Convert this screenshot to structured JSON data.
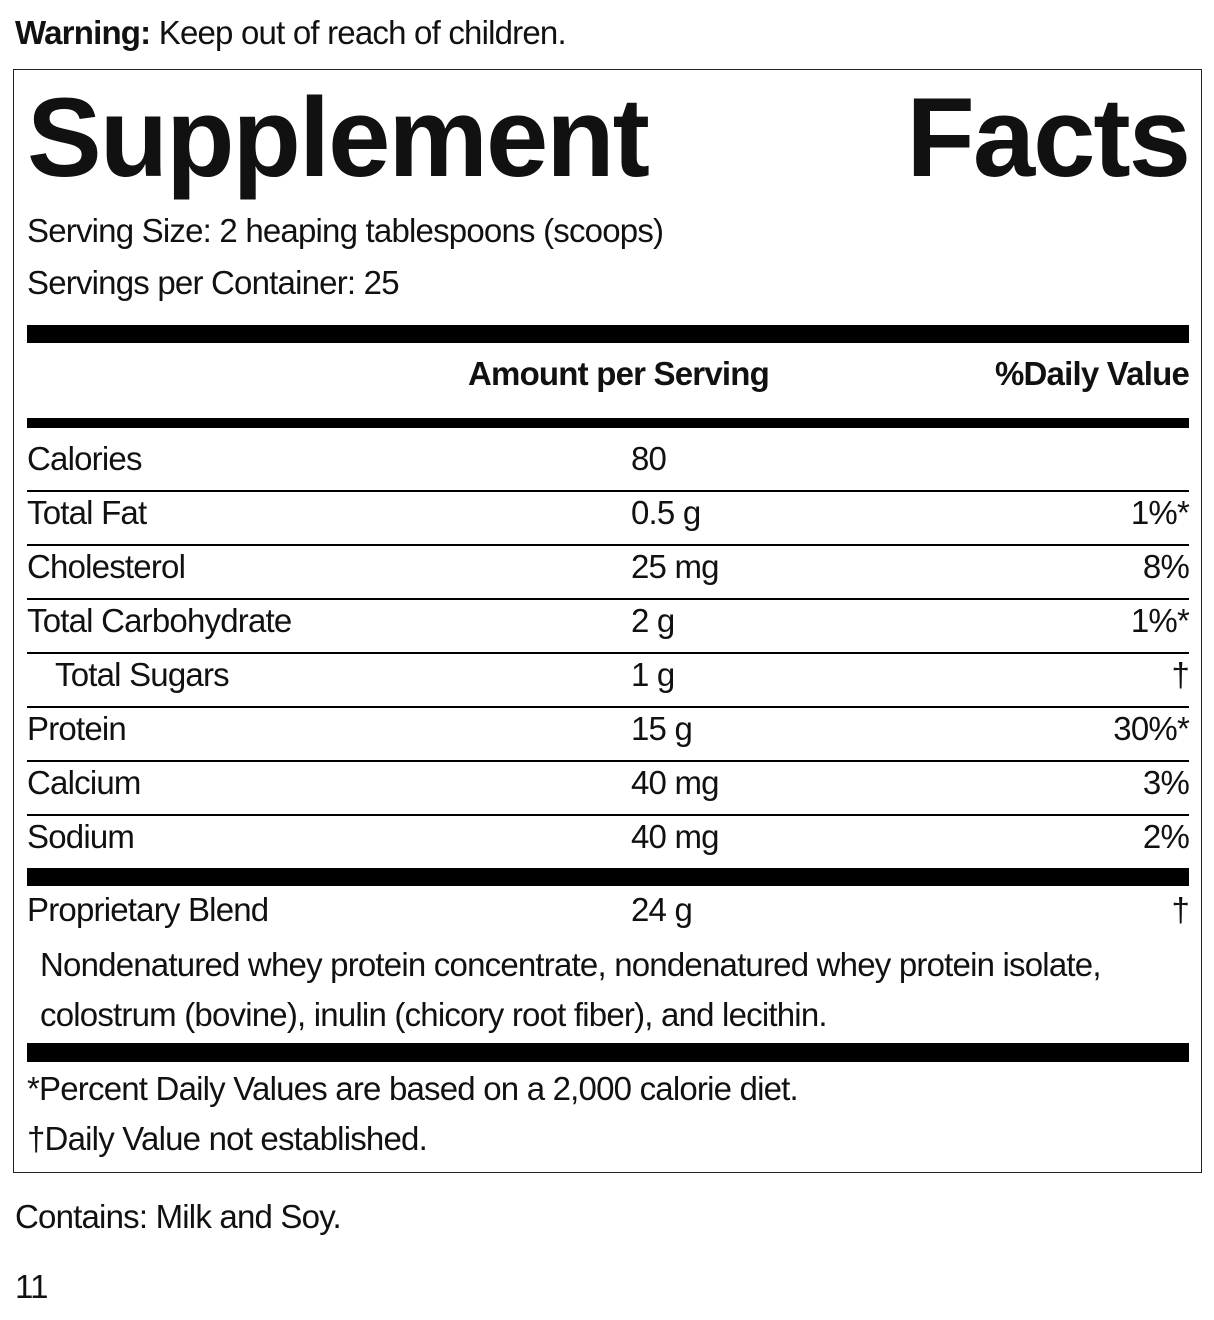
{
  "warning": {
    "label": "Warning:",
    "text": "Keep out of reach of children."
  },
  "title": "Supplement Facts",
  "serving_size": "Serving Size: 2 heaping tablespoons (scoops)",
  "servings_per_container": "Servings per Container: 25",
  "header": {
    "amount": "Amount per Serving",
    "daily_value": "%Daily Value"
  },
  "rows": [
    {
      "name": "Calories",
      "amount": "80"
    },
    {
      "name": "Total Fat",
      "amount": "0.5 g",
      "daily_value": "1%*"
    },
    {
      "name": "Cholesterol",
      "amount": "25 mg",
      "daily_value": "8%"
    },
    {
      "name": "Total Carbohydrate",
      "amount": "2 g",
      "daily_value": "1%*"
    },
    {
      "name": "Total Sugars",
      "amount": "1 g",
      "daily_value": "†",
      "indent": true
    },
    {
      "name": "Protein",
      "amount": "15 g",
      "daily_value": "30%*"
    },
    {
      "name": "Calcium",
      "amount": "40 mg",
      "daily_value": "3%"
    },
    {
      "name": "Sodium",
      "amount": "40 mg",
      "daily_value": "2%"
    }
  ],
  "blend": {
    "name": "Proprietary Blend",
    "amount": "24 g",
    "daily_value": "†",
    "ingredients": "Nondenatured whey protein concentrate, nondenatured whey protein isolate, colostrum (bovine), inulin (chicory root fiber), and lecithin."
  },
  "footnotes": [
    "*Percent Daily Values are based on a 2,000 calorie diet.",
    "†Daily Value not established."
  ],
  "contains": "Contains: Milk and Soy.",
  "page_number": "11"
}
